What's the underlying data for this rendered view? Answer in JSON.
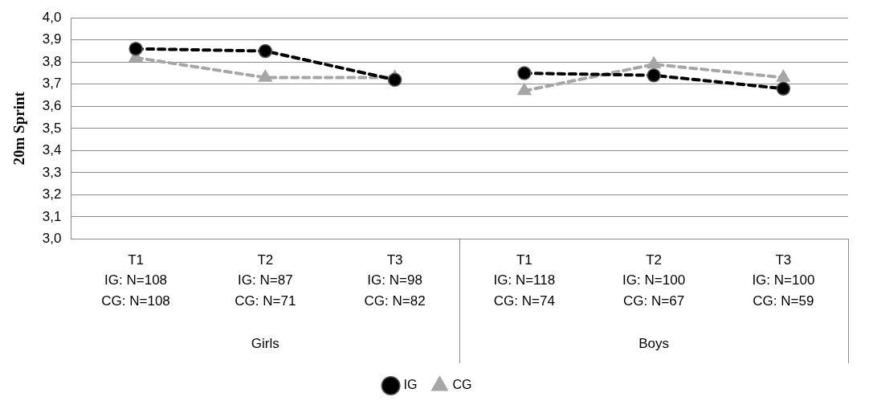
{
  "chart_data": {
    "type": "line",
    "ylabel": "20m Sprint",
    "categories": [
      "T1\nIG: N=108\nCG: N=108",
      "T2\nIG: N=87\nCG: N=71",
      "T3\nIG: N=98\nCG: N=82",
      "T1\nIG: N=118\nCG: N=74",
      "T2\nIG: N=100\nCG: N=67",
      "T3\nIG: N=100\nCG: N=59"
    ],
    "series": [
      {
        "name": "IG",
        "color": "#000000",
        "marker": "circle",
        "values": [
          3.86,
          3.85,
          3.72,
          null,
          null,
          null
        ]
      },
      {
        "name": "CG",
        "color": "#a6a6a6",
        "marker": "triangle",
        "values": [
          3.82,
          3.73,
          3.73,
          null,
          null,
          null
        ]
      },
      {
        "color": "#000000",
        "marker": "circle",
        "values": [
          null,
          null,
          null,
          3.75,
          3.74,
          3.68
        ]
      },
      {
        "color": "#a6a6a6",
        "marker": "triangle",
        "values": [
          null,
          null,
          null,
          3.67,
          3.79,
          3.73
        ]
      }
    ],
    "annotations": [
      "Girls",
      "Boys"
    ],
    "ylim": [
      3,
      4
    ],
    "yticks": [
      {
        "value": 3,
        "label": "3,0"
      },
      {
        "value": 3.1,
        "label": "3,1"
      },
      {
        "value": 3.2,
        "label": "3,2"
      },
      {
        "value": 3.3,
        "label": "3,3"
      },
      {
        "value": 3.4,
        "label": "3,4"
      },
      {
        "value": 3.5,
        "label": "3,5"
      },
      {
        "value": 3.6,
        "label": "3,6"
      },
      {
        "value": 3.7,
        "label": "3,7"
      },
      {
        "value": 3.8,
        "label": "3,8"
      },
      {
        "value": 3.9,
        "label": "3,9"
      },
      {
        "value": 4,
        "label": "4,0"
      }
    ],
    "grid": "y",
    "legend": "bottom",
    "line_style": "dashed"
  }
}
